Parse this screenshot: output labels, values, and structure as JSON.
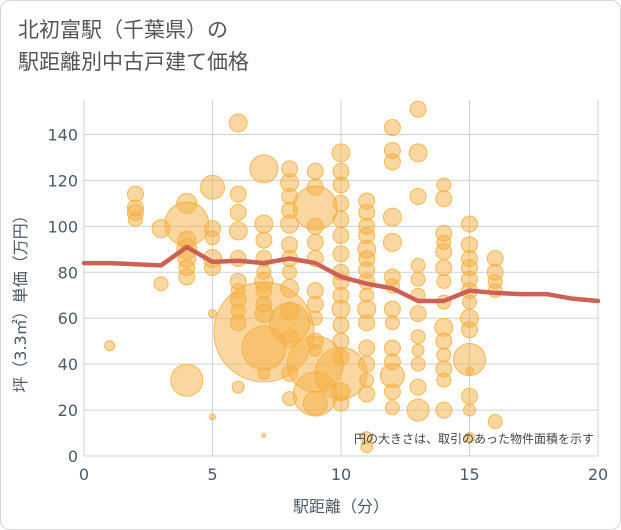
{
  "title": {
    "line1": "北初富駅（千葉県）の",
    "line2": "駅距離別中古戸建て価格"
  },
  "chart_data": {
    "type": "scatter",
    "xlabel": "駅距離（分）",
    "ylabel": "坪（3.3㎡）単価（万円）",
    "xlim": [
      0,
      20
    ],
    "ylim": [
      0,
      155
    ],
    "xticks": [
      0,
      5,
      10,
      15,
      20
    ],
    "yticks": [
      0,
      20,
      40,
      60,
      80,
      100,
      120,
      140
    ],
    "grid": true,
    "annotation": "円の大きさは、取引のあった物件面積を示す",
    "colors": {
      "bubble": "#f5b041",
      "trend": "#cd6155",
      "grid": "#c9d3dd"
    },
    "points": [
      {
        "x": 1,
        "y": 48,
        "r": 5
      },
      {
        "x": 2,
        "y": 114,
        "r": 8
      },
      {
        "x": 2,
        "y": 108,
        "r": 8
      },
      {
        "x": 2,
        "y": 106,
        "r": 8
      },
      {
        "x": 2,
        "y": 103,
        "r": 7
      },
      {
        "x": 3,
        "y": 99,
        "r": 9
      },
      {
        "x": 3,
        "y": 75,
        "r": 7
      },
      {
        "x": 4,
        "y": 110,
        "r": 10
      },
      {
        "x": 4,
        "y": 101,
        "r": 22
      },
      {
        "x": 4,
        "y": 94,
        "r": 9
      },
      {
        "x": 4,
        "y": 90,
        "r": 10
      },
      {
        "x": 4,
        "y": 86,
        "r": 9
      },
      {
        "x": 4,
        "y": 82,
        "r": 8
      },
      {
        "x": 4,
        "y": 78,
        "r": 8
      },
      {
        "x": 4,
        "y": 33,
        "r": 16
      },
      {
        "x": 5,
        "y": 117,
        "r": 12
      },
      {
        "x": 5,
        "y": 99,
        "r": 8
      },
      {
        "x": 5,
        "y": 95,
        "r": 7
      },
      {
        "x": 5,
        "y": 86,
        "r": 9
      },
      {
        "x": 5,
        "y": 82,
        "r": 8
      },
      {
        "x": 5,
        "y": 62,
        "r": 4
      },
      {
        "x": 5,
        "y": 17,
        "r": 3
      },
      {
        "x": 6,
        "y": 145,
        "r": 9
      },
      {
        "x": 6,
        "y": 114,
        "r": 8
      },
      {
        "x": 6,
        "y": 106,
        "r": 8
      },
      {
        "x": 6,
        "y": 98,
        "r": 9
      },
      {
        "x": 6,
        "y": 86,
        "r": 8
      },
      {
        "x": 6,
        "y": 76,
        "r": 8
      },
      {
        "x": 6,
        "y": 72,
        "r": 7
      },
      {
        "x": 6,
        "y": 68,
        "r": 8
      },
      {
        "x": 6,
        "y": 63,
        "r": 7
      },
      {
        "x": 6,
        "y": 58,
        "r": 8
      },
      {
        "x": 6,
        "y": 30,
        "r": 6
      },
      {
        "x": 7,
        "y": 125,
        "r": 14
      },
      {
        "x": 7,
        "y": 101,
        "r": 9
      },
      {
        "x": 7,
        "y": 94,
        "r": 8
      },
      {
        "x": 7,
        "y": 86,
        "r": 8
      },
      {
        "x": 7,
        "y": 80,
        "r": 7
      },
      {
        "x": 7,
        "y": 76,
        "r": 9
      },
      {
        "x": 7,
        "y": 72,
        "r": 8
      },
      {
        "x": 7,
        "y": 66,
        "r": 8
      },
      {
        "x": 7,
        "y": 62,
        "r": 9
      },
      {
        "x": 7,
        "y": 54,
        "r": 50
      },
      {
        "x": 7,
        "y": 47,
        "r": 22
      },
      {
        "x": 7,
        "y": 36,
        "r": 6
      },
      {
        "x": 7,
        "y": 9,
        "r": 2
      },
      {
        "x": 8,
        "y": 125,
        "r": 8
      },
      {
        "x": 8,
        "y": 119,
        "r": 9
      },
      {
        "x": 8,
        "y": 113,
        "r": 8
      },
      {
        "x": 8,
        "y": 107,
        "r": 8
      },
      {
        "x": 8,
        "y": 101,
        "r": 9
      },
      {
        "x": 8,
        "y": 92,
        "r": 8
      },
      {
        "x": 8,
        "y": 86,
        "r": 8
      },
      {
        "x": 8,
        "y": 80,
        "r": 7
      },
      {
        "x": 8,
        "y": 73,
        "r": 9
      },
      {
        "x": 8,
        "y": 63,
        "r": 9
      },
      {
        "x": 8,
        "y": 58,
        "r": 20
      },
      {
        "x": 8,
        "y": 51,
        "r": 9
      },
      {
        "x": 8,
        "y": 36,
        "r": 8
      },
      {
        "x": 8,
        "y": 25,
        "r": 7
      },
      {
        "x": 9,
        "y": 124,
        "r": 8
      },
      {
        "x": 9,
        "y": 117,
        "r": 8
      },
      {
        "x": 9,
        "y": 108,
        "r": 22
      },
      {
        "x": 9,
        "y": 100,
        "r": 8
      },
      {
        "x": 9,
        "y": 93,
        "r": 8
      },
      {
        "x": 9,
        "y": 86,
        "r": 8
      },
      {
        "x": 9,
        "y": 72,
        "r": 8
      },
      {
        "x": 9,
        "y": 66,
        "r": 8
      },
      {
        "x": 9,
        "y": 60,
        "r": 7
      },
      {
        "x": 9,
        "y": 50,
        "r": 8
      },
      {
        "x": 9,
        "y": 46,
        "r": 6
      },
      {
        "x": 9,
        "y": 40,
        "r": 28
      },
      {
        "x": 9,
        "y": 27,
        "r": 22
      },
      {
        "x": 9,
        "y": 23,
        "r": 12
      },
      {
        "x": 10,
        "y": 132,
        "r": 9
      },
      {
        "x": 10,
        "y": 124,
        "r": 8
      },
      {
        "x": 10,
        "y": 118,
        "r": 8
      },
      {
        "x": 10,
        "y": 110,
        "r": 8
      },
      {
        "x": 10,
        "y": 103,
        "r": 8
      },
      {
        "x": 10,
        "y": 96,
        "r": 8
      },
      {
        "x": 10,
        "y": 88,
        "r": 8
      },
      {
        "x": 10,
        "y": 80,
        "r": 8
      },
      {
        "x": 10,
        "y": 76,
        "r": 8
      },
      {
        "x": 10,
        "y": 70,
        "r": 8
      },
      {
        "x": 10,
        "y": 64,
        "r": 9
      },
      {
        "x": 10,
        "y": 57,
        "r": 8
      },
      {
        "x": 10,
        "y": 50,
        "r": 8
      },
      {
        "x": 10,
        "y": 43,
        "r": 8
      },
      {
        "x": 10,
        "y": 36,
        "r": 26
      },
      {
        "x": 10,
        "y": 28,
        "r": 9
      },
      {
        "x": 10,
        "y": 23,
        "r": 8
      },
      {
        "x": 11,
        "y": 111,
        "r": 8
      },
      {
        "x": 11,
        "y": 106,
        "r": 8
      },
      {
        "x": 11,
        "y": 100,
        "r": 8
      },
      {
        "x": 11,
        "y": 96,
        "r": 8
      },
      {
        "x": 11,
        "y": 90,
        "r": 9
      },
      {
        "x": 11,
        "y": 86,
        "r": 8
      },
      {
        "x": 11,
        "y": 81,
        "r": 8
      },
      {
        "x": 11,
        "y": 76,
        "r": 8
      },
      {
        "x": 11,
        "y": 70,
        "r": 7
      },
      {
        "x": 11,
        "y": 64,
        "r": 9
      },
      {
        "x": 11,
        "y": 58,
        "r": 8
      },
      {
        "x": 11,
        "y": 47,
        "r": 8
      },
      {
        "x": 11,
        "y": 40,
        "r": 8
      },
      {
        "x": 11,
        "y": 33,
        "r": 7
      },
      {
        "x": 11,
        "y": 27,
        "r": 8
      },
      {
        "x": 11,
        "y": 8,
        "r": 6
      },
      {
        "x": 11,
        "y": 4,
        "r": 6
      },
      {
        "x": 12,
        "y": 143,
        "r": 8
      },
      {
        "x": 12,
        "y": 133,
        "r": 8
      },
      {
        "x": 12,
        "y": 128,
        "r": 8
      },
      {
        "x": 12,
        "y": 104,
        "r": 9
      },
      {
        "x": 12,
        "y": 93,
        "r": 9
      },
      {
        "x": 12,
        "y": 78,
        "r": 8
      },
      {
        "x": 12,
        "y": 74,
        "r": 7
      },
      {
        "x": 12,
        "y": 64,
        "r": 8
      },
      {
        "x": 12,
        "y": 58,
        "r": 7
      },
      {
        "x": 12,
        "y": 47,
        "r": 8
      },
      {
        "x": 12,
        "y": 41,
        "r": 8
      },
      {
        "x": 12,
        "y": 35,
        "r": 12
      },
      {
        "x": 12,
        "y": 28,
        "r": 8
      },
      {
        "x": 12,
        "y": 21,
        "r": 7
      },
      {
        "x": 13,
        "y": 151,
        "r": 8
      },
      {
        "x": 13,
        "y": 132,
        "r": 9
      },
      {
        "x": 13,
        "y": 113,
        "r": 8
      },
      {
        "x": 13,
        "y": 83,
        "r": 7
      },
      {
        "x": 13,
        "y": 77,
        "r": 7
      },
      {
        "x": 13,
        "y": 70,
        "r": 7
      },
      {
        "x": 13,
        "y": 62,
        "r": 8
      },
      {
        "x": 13,
        "y": 52,
        "r": 7
      },
      {
        "x": 13,
        "y": 46,
        "r": 6
      },
      {
        "x": 13,
        "y": 40,
        "r": 7
      },
      {
        "x": 13,
        "y": 30,
        "r": 8
      },
      {
        "x": 13,
        "y": 20,
        "r": 11
      },
      {
        "x": 14,
        "y": 118,
        "r": 7
      },
      {
        "x": 14,
        "y": 112,
        "r": 8
      },
      {
        "x": 14,
        "y": 97,
        "r": 8
      },
      {
        "x": 14,
        "y": 93,
        "r": 7
      },
      {
        "x": 14,
        "y": 89,
        "r": 8
      },
      {
        "x": 14,
        "y": 82,
        "r": 8
      },
      {
        "x": 14,
        "y": 76,
        "r": 7
      },
      {
        "x": 14,
        "y": 67,
        "r": 7
      },
      {
        "x": 14,
        "y": 56,
        "r": 9
      },
      {
        "x": 14,
        "y": 50,
        "r": 8
      },
      {
        "x": 14,
        "y": 44,
        "r": 7
      },
      {
        "x": 14,
        "y": 38,
        "r": 8
      },
      {
        "x": 14,
        "y": 33,
        "r": 7
      },
      {
        "x": 14,
        "y": 20,
        "r": 8
      },
      {
        "x": 15,
        "y": 101,
        "r": 8
      },
      {
        "x": 15,
        "y": 92,
        "r": 8
      },
      {
        "x": 15,
        "y": 86,
        "r": 8
      },
      {
        "x": 15,
        "y": 82,
        "r": 8
      },
      {
        "x": 15,
        "y": 77,
        "r": 8
      },
      {
        "x": 15,
        "y": 72,
        "r": 8
      },
      {
        "x": 15,
        "y": 67,
        "r": 7
      },
      {
        "x": 15,
        "y": 60,
        "r": 9
      },
      {
        "x": 15,
        "y": 55,
        "r": 8
      },
      {
        "x": 15,
        "y": 42,
        "r": 16
      },
      {
        "x": 15,
        "y": 37,
        "r": 4
      },
      {
        "x": 15,
        "y": 26,
        "r": 8
      },
      {
        "x": 15,
        "y": 20,
        "r": 6
      },
      {
        "x": 15,
        "y": 8,
        "r": 5
      },
      {
        "x": 16,
        "y": 86,
        "r": 8
      },
      {
        "x": 16,
        "y": 80,
        "r": 8
      },
      {
        "x": 16,
        "y": 76,
        "r": 7
      },
      {
        "x": 16,
        "y": 72,
        "r": 7
      },
      {
        "x": 16,
        "y": 15,
        "r": 7
      }
    ],
    "trend": {
      "x": [
        0,
        1,
        2,
        3,
        4,
        5,
        6,
        7,
        8,
        9,
        10,
        11,
        12,
        13,
        14,
        15,
        16,
        17,
        18,
        19,
        20
      ],
      "y": [
        84,
        84,
        83.5,
        83,
        91,
        84.5,
        85,
        84,
        86,
        84,
        78,
        75,
        73,
        67.5,
        67.5,
        72,
        71,
        70.5,
        70.5,
        68.5,
        67.5
      ]
    }
  }
}
